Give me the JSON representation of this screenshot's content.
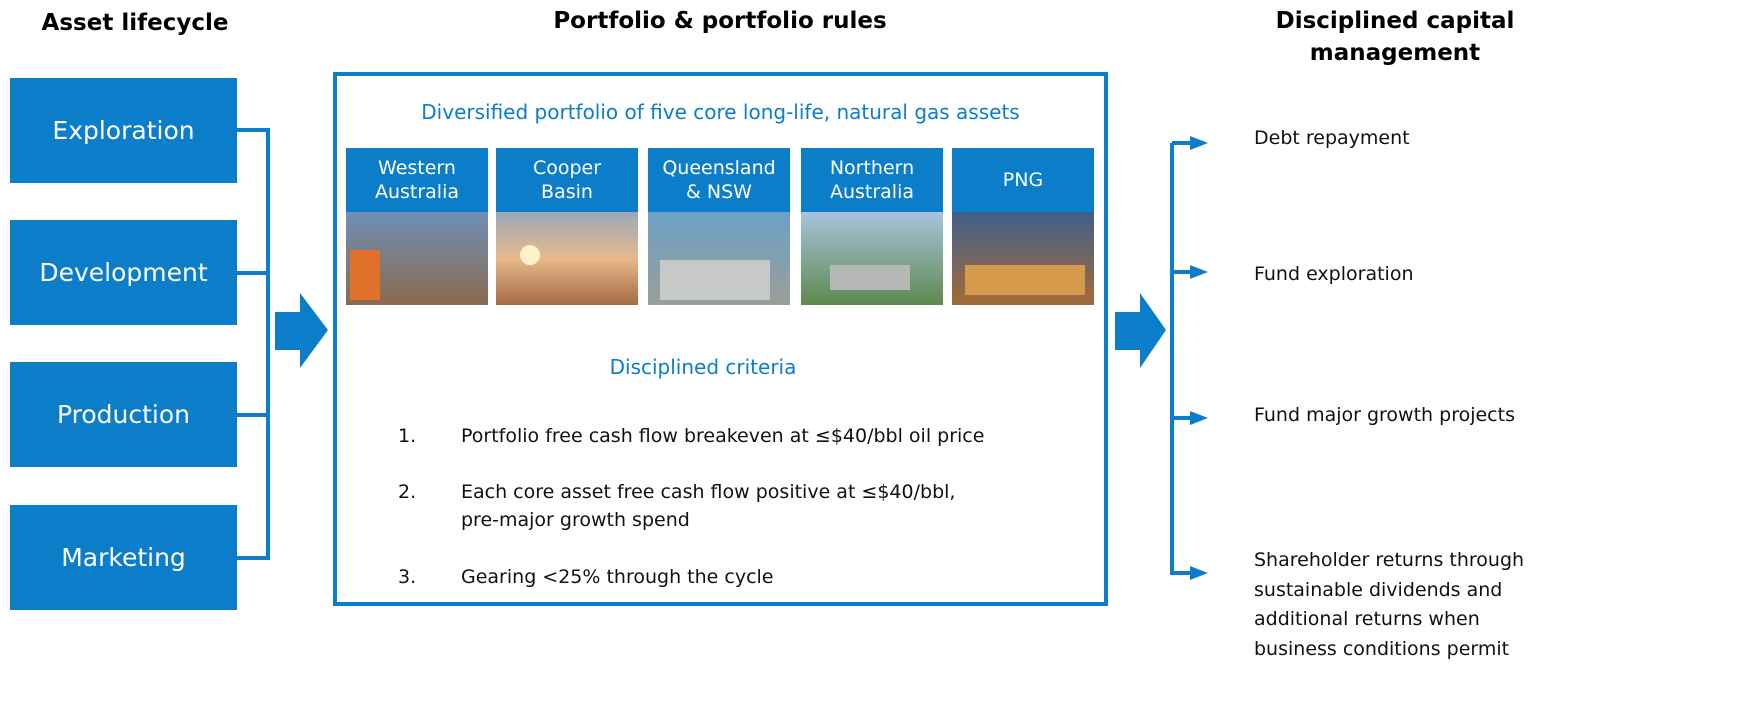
{
  "left": {
    "heading": "Asset lifecycle",
    "stages": [
      "Exploration",
      "Development",
      "Production",
      "Marketing"
    ]
  },
  "middle": {
    "heading": "Portfolio & portfolio rules",
    "subtitle": "Diversified portfolio of five core long-life, natural gas assets",
    "assets": [
      [
        "Western",
        "Australia"
      ],
      [
        "Cooper",
        "Basin"
      ],
      [
        "Queensland",
        "& NSW"
      ],
      [
        "Northern",
        "Australia"
      ],
      [
        "PNG"
      ]
    ],
    "criteria_title": "Disciplined criteria",
    "criteria": [
      {
        "number": "1.",
        "lines": [
          "Portfolio free cash flow breakeven at ≤$40/bbl oil price"
        ]
      },
      {
        "number": "2.",
        "lines": [
          "Each core asset free cash flow positive at ≤$40/bbl,",
          "pre-major growth spend"
        ]
      },
      {
        "number": "3.",
        "lines": [
          "Gearing <25% through the cycle"
        ]
      }
    ]
  },
  "right": {
    "heading": [
      "Disciplined capital",
      "management"
    ],
    "uses": [
      [
        "Debt repayment"
      ],
      [
        "Fund exploration"
      ],
      [
        "Fund major growth projects"
      ],
      [
        "Shareholder returns through",
        "sustainable dividends and",
        "additional returns when",
        "business conditions permit"
      ]
    ]
  }
}
